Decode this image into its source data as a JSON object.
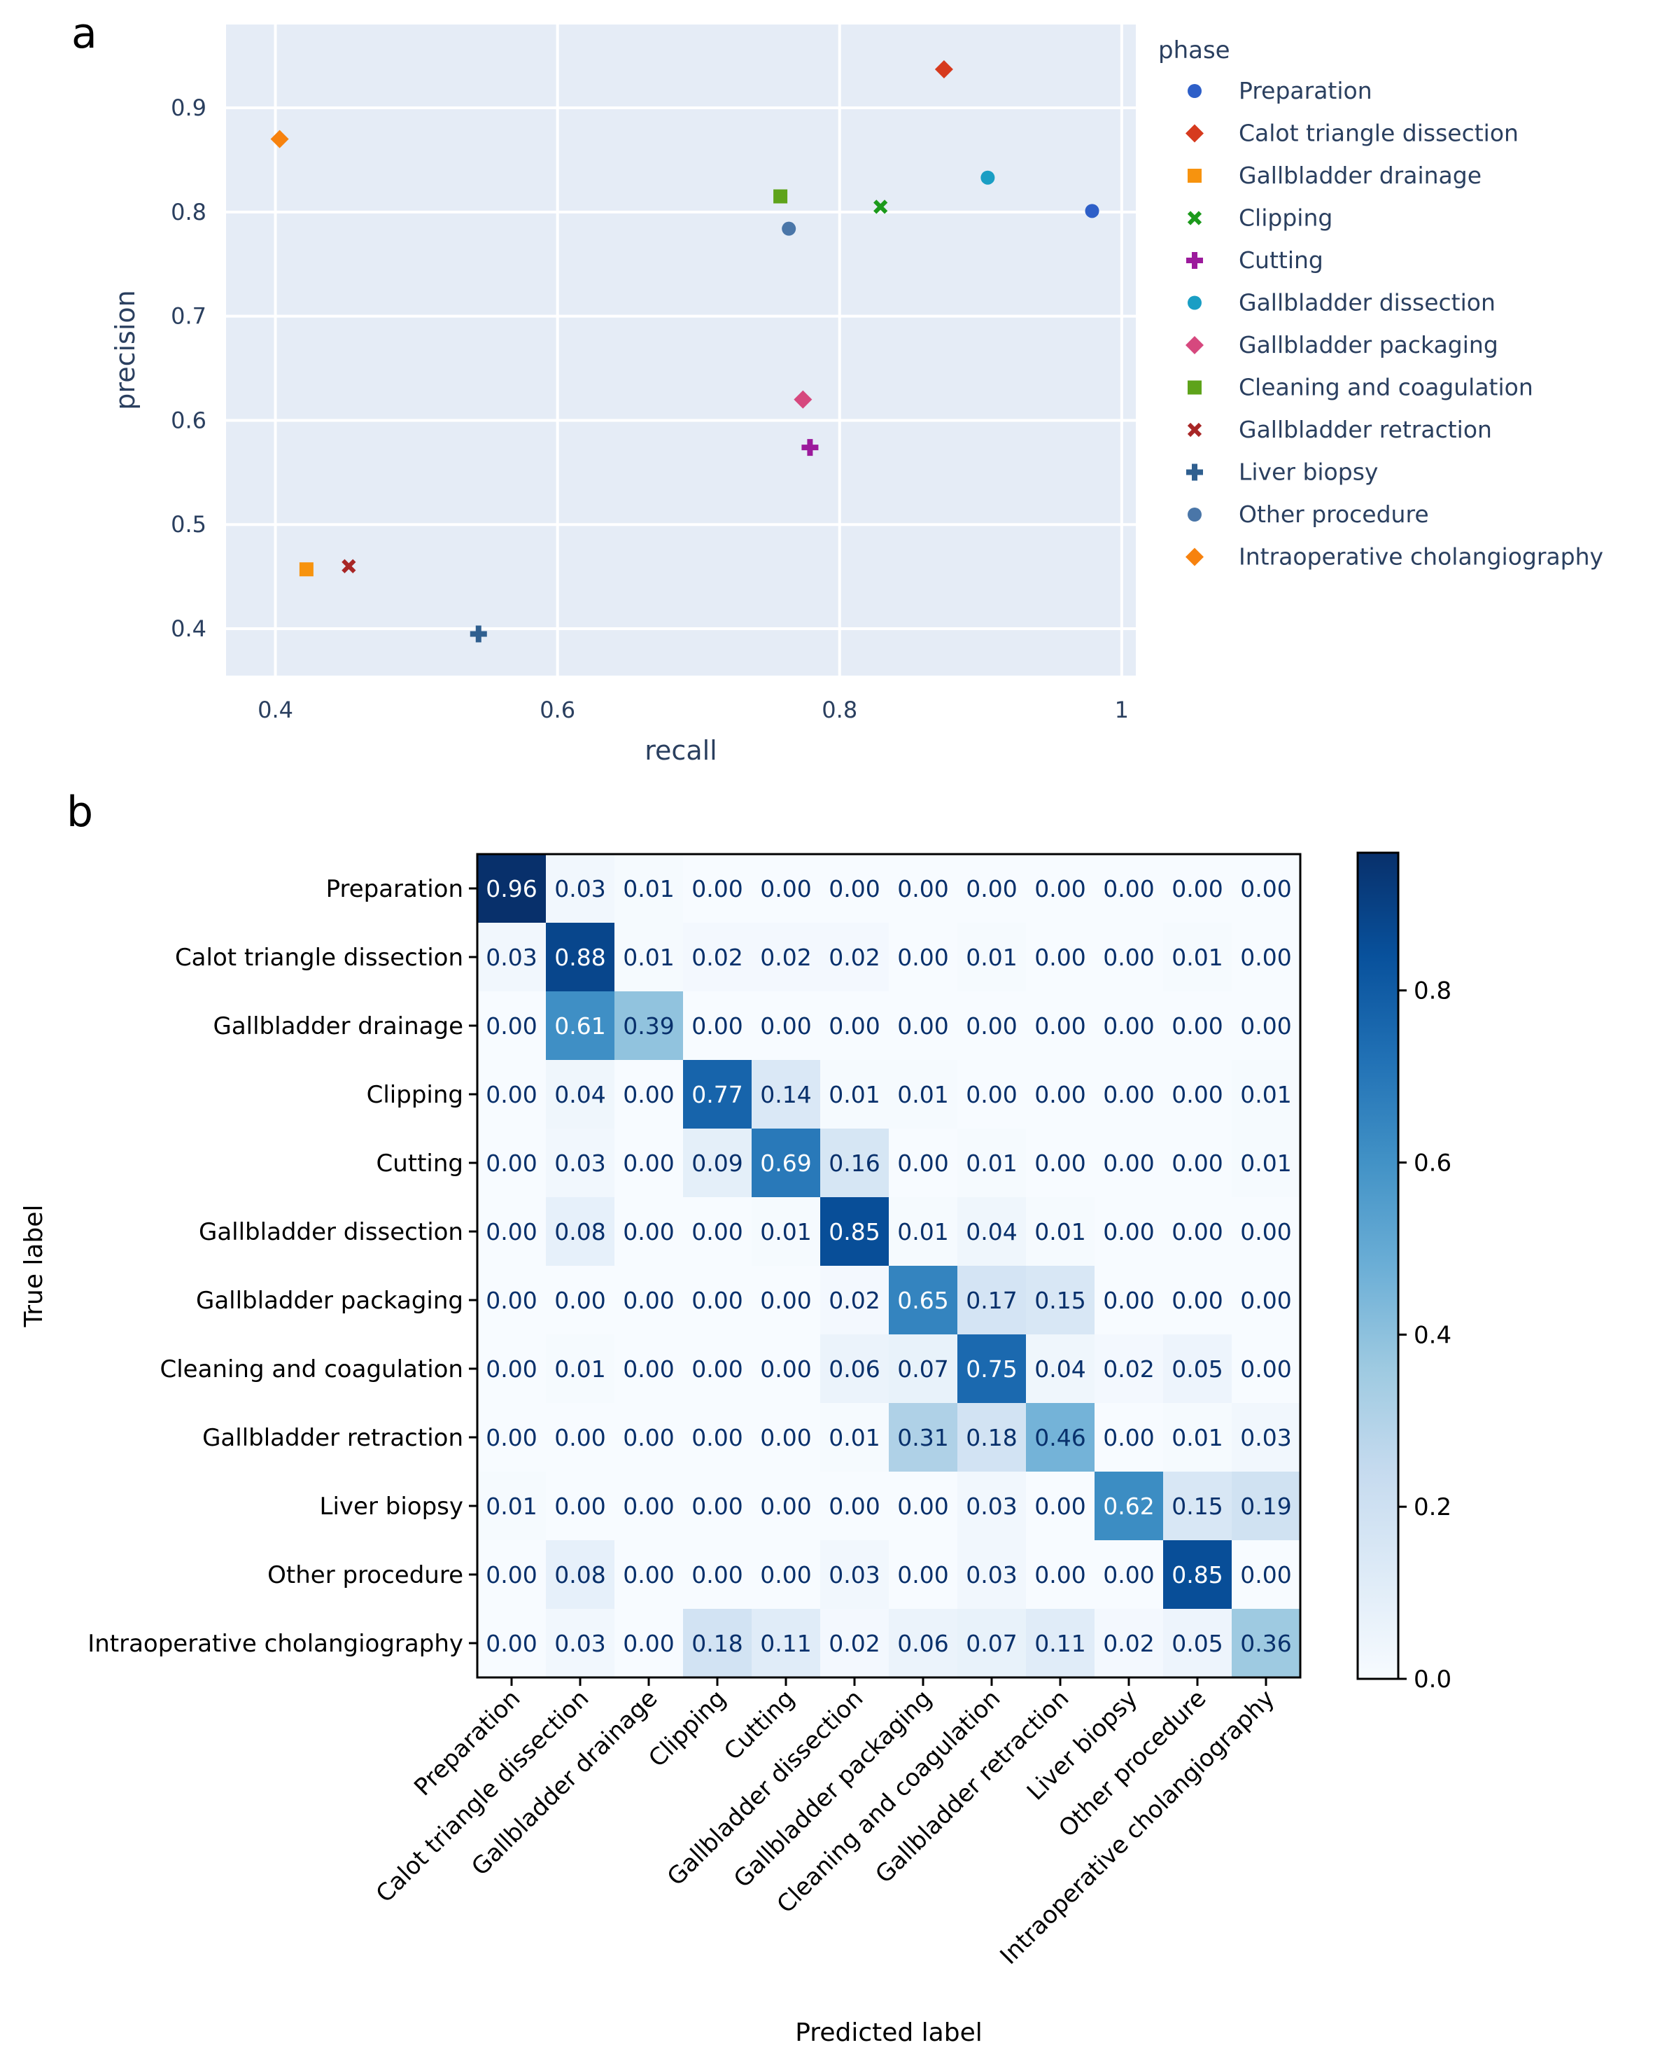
{
  "panel_a": {
    "letter": "a"
  },
  "panel_b": {
    "letter": "b"
  },
  "colors": {
    "plot_bg": "#E5ECF6",
    "axis_text": "#2A3F5F"
  },
  "chart_data": [
    {
      "type": "scatter",
      "xlabel": "recall",
      "ylabel": "precision",
      "xlim": [
        0.365,
        1.01
      ],
      "ylim": [
        0.355,
        0.98
      ],
      "xticks": [
        {
          "v": 0.4,
          "label": "0.4"
        },
        {
          "v": 0.6,
          "label": "0.6"
        },
        {
          "v": 0.8,
          "label": "0.8"
        },
        {
          "v": 1.0,
          "label": "1"
        }
      ],
      "yticks": [
        {
          "v": 0.4,
          "label": "0.4"
        },
        {
          "v": 0.5,
          "label": "0.5"
        },
        {
          "v": 0.6,
          "label": "0.6"
        },
        {
          "v": 0.7,
          "label": "0.7"
        },
        {
          "v": 0.8,
          "label": "0.8"
        },
        {
          "v": 0.9,
          "label": "0.9"
        }
      ],
      "legend_title": "phase",
      "legend_position": "right",
      "series": [
        {
          "name": "Preparation",
          "symbol": "circle",
          "color": "#2E5FC8",
          "x": 0.979,
          "y": 0.801
        },
        {
          "name": "Calot triangle dissection",
          "symbol": "diamond",
          "color": "#D63A1E",
          "x": 0.874,
          "y": 0.937
        },
        {
          "name": "Gallbladder drainage",
          "symbol": "square",
          "color": "#F7930E",
          "x": 0.422,
          "y": 0.457
        },
        {
          "name": "Clipping",
          "symbol": "x",
          "color": "#1C9A1C",
          "x": 0.829,
          "y": 0.805
        },
        {
          "name": "Cutting",
          "symbol": "cross",
          "color": "#9C1A9C",
          "x": 0.779,
          "y": 0.574
        },
        {
          "name": "Gallbladder dissection",
          "symbol": "circle",
          "color": "#1A9EC4",
          "x": 0.905,
          "y": 0.833
        },
        {
          "name": "Gallbladder packaging",
          "symbol": "diamond",
          "color": "#D6487E",
          "x": 0.774,
          "y": 0.62
        },
        {
          "name": "Cleaning and coagulation",
          "symbol": "square",
          "color": "#5EA31A",
          "x": 0.758,
          "y": 0.815
        },
        {
          "name": "Gallbladder retraction",
          "symbol": "x",
          "color": "#A82626",
          "x": 0.452,
          "y": 0.46
        },
        {
          "name": "Liver biopsy",
          "symbol": "cross",
          "color": "#2F5F8F",
          "x": 0.544,
          "y": 0.395
        },
        {
          "name": "Other procedure",
          "symbol": "circle",
          "color": "#4A76A8",
          "x": 0.764,
          "y": 0.784
        },
        {
          "name": "Intraoperative cholangiography",
          "symbol": "diamond",
          "color": "#F7820E",
          "x": 0.403,
          "y": 0.87
        }
      ]
    },
    {
      "type": "heatmap",
      "xlabel": "Predicted label",
      "ylabel": "True label",
      "labels": [
        "Preparation",
        "Calot triangle dissection",
        "Gallbladder drainage",
        "Clipping",
        "Cutting",
        "Gallbladder dissection",
        "Gallbladder packaging",
        "Cleaning and coagulation",
        "Gallbladder retraction",
        "Liver biopsy",
        "Other procedure",
        "Intraoperative cholangiography"
      ],
      "matrix": [
        [
          "0.96",
          "0.03",
          "0.01",
          "0.00",
          "0.00",
          "0.00",
          "0.00",
          "0.00",
          "0.00",
          "0.00",
          "0.00",
          "0.00"
        ],
        [
          "0.03",
          "0.88",
          "0.01",
          "0.02",
          "0.02",
          "0.02",
          "0.00",
          "0.01",
          "0.00",
          "0.00",
          "0.01",
          "0.00"
        ],
        [
          "0.00",
          "0.61",
          "0.39",
          "0.00",
          "0.00",
          "0.00",
          "0.00",
          "0.00",
          "0.00",
          "0.00",
          "0.00",
          "0.00"
        ],
        [
          "0.00",
          "0.04",
          "0.00",
          "0.77",
          "0.14",
          "0.01",
          "0.01",
          "0.00",
          "0.00",
          "0.00",
          "0.00",
          "0.01"
        ],
        [
          "0.00",
          "0.03",
          "0.00",
          "0.09",
          "0.69",
          "0.16",
          "0.00",
          "0.01",
          "0.00",
          "0.00",
          "0.00",
          "0.01"
        ],
        [
          "0.00",
          "0.08",
          "0.00",
          "0.00",
          "0.01",
          "0.85",
          "0.01",
          "0.04",
          "0.01",
          "0.00",
          "0.00",
          "0.00"
        ],
        [
          "0.00",
          "0.00",
          "0.00",
          "0.00",
          "0.00",
          "0.02",
          "0.65",
          "0.17",
          "0.15",
          "0.00",
          "0.00",
          "0.00"
        ],
        [
          "0.00",
          "0.01",
          "0.00",
          "0.00",
          "0.00",
          "0.06",
          "0.07",
          "0.75",
          "0.04",
          "0.02",
          "0.05",
          "0.00"
        ],
        [
          "0.00",
          "0.00",
          "0.00",
          "0.00",
          "0.00",
          "0.01",
          "0.31",
          "0.18",
          "0.46",
          "0.00",
          "0.01",
          "0.03"
        ],
        [
          "0.01",
          "0.00",
          "0.00",
          "0.00",
          "0.00",
          "0.00",
          "0.00",
          "0.03",
          "0.00",
          "0.62",
          "0.15",
          "0.19"
        ],
        [
          "0.00",
          "0.08",
          "0.00",
          "0.00",
          "0.00",
          "0.03",
          "0.00",
          "0.03",
          "0.00",
          "0.00",
          "0.85",
          "0.00"
        ],
        [
          "0.00",
          "0.03",
          "0.00",
          "0.18",
          "0.11",
          "0.02",
          "0.06",
          "0.07",
          "0.11",
          "0.02",
          "0.05",
          "0.36"
        ]
      ],
      "vmin": 0.0,
      "vmax": 0.96,
      "colormap": "Blues",
      "colorbar_ticks": [
        {
          "v": 0.0,
          "label": "0.0"
        },
        {
          "v": 0.2,
          "label": "0.2"
        },
        {
          "v": 0.4,
          "label": "0.4"
        },
        {
          "v": 0.6,
          "label": "0.6"
        },
        {
          "v": 0.8,
          "label": "0.8"
        }
      ]
    }
  ]
}
